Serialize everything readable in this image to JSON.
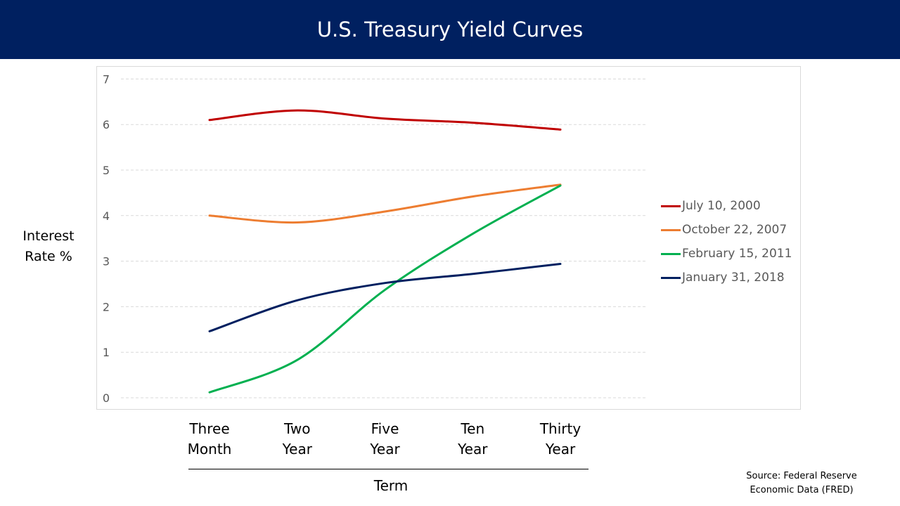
{
  "header": {
    "title": "U.S. Treasury Yield Curves"
  },
  "source": {
    "line1": "Source:  Federal Reserve",
    "line2": "Economic Data (FRED)"
  },
  "chart_data": {
    "type": "line",
    "title": "U.S. Treasury Yield Curves",
    "ylabel_line1": "Interest",
    "ylabel_line2": "Rate %",
    "xlabel": "Term",
    "categories": [
      [
        "Three",
        "Month"
      ],
      [
        "Two",
        "Year"
      ],
      [
        "Five",
        "Year"
      ],
      [
        "Ten",
        "Year"
      ],
      [
        "Thirty",
        "Year"
      ]
    ],
    "ylim": [
      0,
      7
    ],
    "yticks": [
      "0",
      "1",
      "2",
      "3",
      "4",
      "5",
      "6",
      "7"
    ],
    "grid": true,
    "smooth": true,
    "legend_position": "right",
    "series": [
      {
        "name": "July 10, 2000",
        "color": "#c00000",
        "values": [
          6.1,
          6.31,
          6.13,
          6.04,
          5.89
        ]
      },
      {
        "name": "October 22, 2007",
        "color": "#ed7d31",
        "values": [
          4.0,
          3.85,
          4.09,
          4.42,
          4.68
        ]
      },
      {
        "name": "February 15, 2011",
        "color": "#00b050",
        "values": [
          0.12,
          0.83,
          2.37,
          3.6,
          4.66
        ]
      },
      {
        "name": "January 31, 2018",
        "color": "#002060",
        "values": [
          1.46,
          2.14,
          2.52,
          2.72,
          2.94
        ]
      }
    ]
  }
}
